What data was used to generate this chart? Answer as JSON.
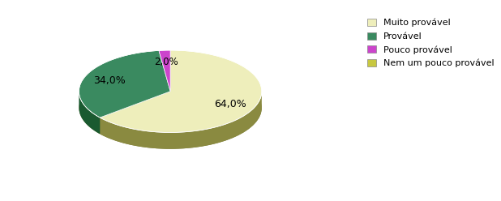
{
  "labels": [
    "Muito provável",
    "Provável",
    "Pouco provável",
    "Nem um pouco provável"
  ],
  "values": [
    64.0,
    34.0,
    2.0,
    0.0
  ],
  "colors": [
    "#eeeebb",
    "#3a8a60",
    "#cc44cc",
    "#c8c840"
  ],
  "depth_colors": [
    "#8a8a40",
    "#1a5a30",
    "#882288",
    "#909020"
  ],
  "legend_colors": [
    "#eeeebb",
    "#3a8a60",
    "#cc44cc",
    "#c8c840"
  ],
  "background_color": "#ffffff",
  "figsize": [
    6.18,
    2.48
  ],
  "dpi": 100,
  "startangle": 90,
  "depth": 0.18,
  "yscale": 0.45
}
